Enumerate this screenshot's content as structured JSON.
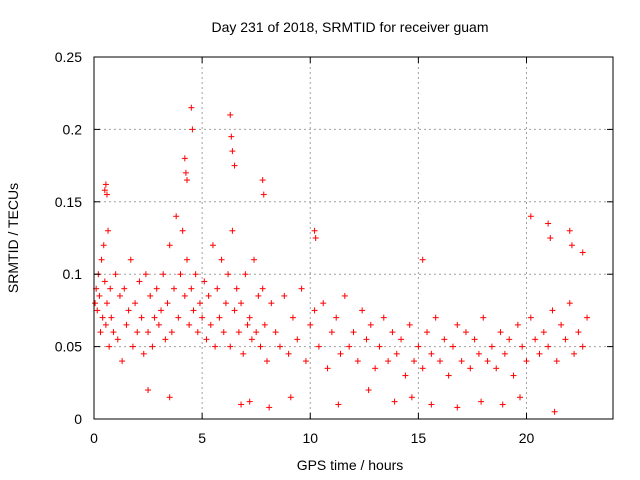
{
  "chart_data": {
    "type": "scatter",
    "title": "Day 231 of 2018, SRMTID for receiver guam",
    "xlabel": "GPS time / hours",
    "ylabel": "SRMTID / TECUs",
    "xlim": [
      0,
      24
    ],
    "ylim": [
      0,
      0.25
    ],
    "xticks": [
      0,
      5,
      10,
      15,
      20
    ],
    "xtick_labels": [
      "0",
      "5",
      "10",
      "15",
      "20"
    ],
    "yticks": [
      0,
      0.05,
      0.1,
      0.15,
      0.2,
      0.25
    ],
    "ytick_labels": [
      "0",
      "0.05",
      "0.1",
      "0.15",
      "0.2",
      "0.25"
    ],
    "grid": true,
    "marker": "+",
    "series": [
      {
        "name": "SRMTID",
        "color": "#ff0000",
        "x": [
          0.05,
          0.1,
          0.15,
          0.2,
          0.25,
          0.3,
          0.35,
          0.4,
          0.45,
          0.5,
          0.55,
          0.6,
          0.65,
          0.7,
          0.75,
          0.8,
          0.9,
          1.0,
          1.1,
          1.2,
          1.3,
          1.4,
          1.5,
          1.6,
          1.7,
          1.8,
          1.9,
          2.0,
          2.1,
          2.2,
          2.3,
          2.4,
          2.5,
          2.6,
          2.7,
          2.8,
          2.9,
          3.0,
          3.1,
          3.2,
          3.3,
          3.4,
          3.5,
          3.6,
          3.7,
          3.8,
          3.9,
          4.0,
          4.1,
          4.2,
          4.3,
          4.4,
          4.5,
          4.6,
          4.7,
          4.8,
          4.9,
          5.0,
          5.1,
          5.2,
          5.3,
          5.4,
          5.5,
          5.6,
          5.7,
          5.8,
          5.9,
          6.0,
          6.1,
          6.2,
          6.3,
          6.4,
          6.5,
          6.6,
          6.7,
          6.8,
          6.9,
          7.0,
          7.1,
          7.2,
          7.3,
          7.4,
          7.5,
          7.6,
          7.7,
          7.8,
          7.9,
          8.0,
          8.2,
          8.4,
          8.6,
          8.8,
          9.0,
          9.2,
          9.4,
          9.6,
          9.8,
          10.0,
          10.2,
          10.4,
          10.6,
          10.8,
          11.0,
          11.2,
          11.4,
          11.6,
          11.8,
          12.0,
          12.2,
          12.4,
          12.6,
          12.8,
          13.0,
          13.2,
          13.4,
          13.6,
          13.8,
          14.0,
          14.2,
          14.4,
          14.6,
          14.8,
          15.0,
          15.2,
          15.4,
          15.6,
          15.8,
          16.0,
          16.2,
          16.4,
          16.6,
          16.8,
          17.0,
          17.2,
          17.4,
          17.6,
          17.8,
          18.0,
          18.2,
          18.4,
          18.6,
          18.8,
          19.0,
          19.2,
          19.4,
          19.6,
          19.8,
          20.0,
          20.2,
          20.4,
          20.6,
          20.8,
          21.0,
          21.2,
          21.4,
          21.6,
          21.8,
          22.0,
          22.2,
          22.4,
          22.6,
          22.8,
          0.5,
          0.55,
          0.6,
          4.2,
          4.25,
          4.3,
          4.5,
          4.55,
          6.3,
          6.35,
          6.4,
          6.5,
          7.8,
          7.85,
          10.2,
          10.25,
          15.2,
          20.2,
          21.0,
          21.1,
          22.0,
          22.1,
          22.6,
          2.5,
          3.5,
          6.8,
          7.2,
          8.1,
          9.1,
          11.3,
          12.7,
          13.9,
          14.7,
          15.6,
          16.8,
          17.9,
          18.9,
          19.7,
          21.3
        ],
        "y": [
          0.08,
          0.09,
          0.075,
          0.1,
          0.085,
          0.06,
          0.11,
          0.07,
          0.12,
          0.095,
          0.065,
          0.08,
          0.13,
          0.05,
          0.09,
          0.07,
          0.06,
          0.1,
          0.055,
          0.085,
          0.04,
          0.09,
          0.065,
          0.075,
          0.11,
          0.05,
          0.08,
          0.06,
          0.095,
          0.07,
          0.045,
          0.1,
          0.06,
          0.085,
          0.05,
          0.07,
          0.09,
          0.065,
          0.075,
          0.1,
          0.055,
          0.08,
          0.12,
          0.06,
          0.09,
          0.14,
          0.07,
          0.1,
          0.13,
          0.085,
          0.11,
          0.065,
          0.09,
          0.075,
          0.1,
          0.06,
          0.08,
          0.07,
          0.095,
          0.055,
          0.085,
          0.065,
          0.12,
          0.05,
          0.09,
          0.07,
          0.11,
          0.06,
          0.08,
          0.1,
          0.05,
          0.13,
          0.075,
          0.09,
          0.06,
          0.08,
          0.045,
          0.1,
          0.065,
          0.07,
          0.055,
          0.11,
          0.06,
          0.085,
          0.05,
          0.09,
          0.065,
          0.04,
          0.08,
          0.06,
          0.05,
          0.085,
          0.045,
          0.07,
          0.055,
          0.09,
          0.04,
          0.065,
          0.075,
          0.05,
          0.08,
          0.035,
          0.06,
          0.07,
          0.045,
          0.085,
          0.05,
          0.06,
          0.04,
          0.075,
          0.055,
          0.065,
          0.035,
          0.05,
          0.07,
          0.04,
          0.06,
          0.045,
          0.055,
          0.03,
          0.065,
          0.04,
          0.05,
          0.035,
          0.06,
          0.045,
          0.07,
          0.04,
          0.055,
          0.03,
          0.05,
          0.065,
          0.04,
          0.06,
          0.035,
          0.055,
          0.045,
          0.07,
          0.04,
          0.05,
          0.035,
          0.06,
          0.045,
          0.055,
          0.03,
          0.065,
          0.05,
          0.04,
          0.07,
          0.055,
          0.045,
          0.06,
          0.05,
          0.075,
          0.04,
          0.065,
          0.055,
          0.08,
          0.045,
          0.06,
          0.05,
          0.07,
          0.158,
          0.162,
          0.155,
          0.18,
          0.17,
          0.165,
          0.215,
          0.2,
          0.21,
          0.195,
          0.185,
          0.175,
          0.165,
          0.155,
          0.13,
          0.125,
          0.11,
          0.14,
          0.135,
          0.125,
          0.13,
          0.12,
          0.115,
          0.02,
          0.015,
          0.01,
          0.012,
          0.008,
          0.015,
          0.01,
          0.02,
          0.012,
          0.015,
          0.01,
          0.008,
          0.012,
          0.01,
          0.015,
          0.005
        ]
      }
    ]
  }
}
